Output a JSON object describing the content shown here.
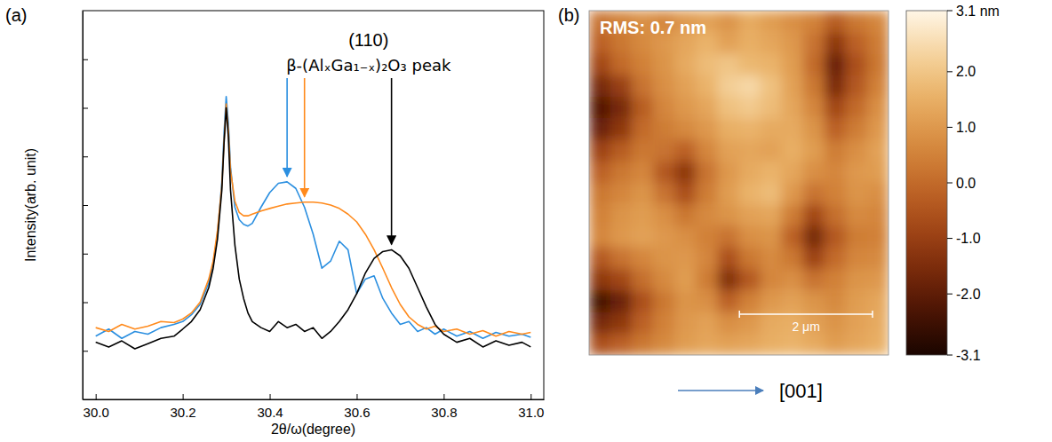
{
  "chart_data": [
    {
      "type": "line",
      "panel_label": "(a)",
      "x_label": "2θ/ω(degree)",
      "y_label": "Intensity(arb. unit)",
      "annotations": [
        "(110)",
        "β-(AlₓGa₁₋ₓ)₂O₃ peak"
      ],
      "x": [
        30.0,
        30.03,
        30.06,
        30.09,
        30.12,
        30.15,
        30.18,
        30.2,
        30.22,
        30.24,
        30.26,
        30.27,
        30.28,
        30.29,
        30.295,
        30.3,
        30.305,
        30.31,
        30.32,
        30.33,
        30.34,
        30.35,
        30.36,
        30.38,
        30.4,
        30.42,
        30.44,
        30.46,
        30.48,
        30.5,
        30.52,
        30.54,
        30.56,
        30.58,
        30.6,
        30.62,
        30.64,
        30.66,
        30.68,
        30.7,
        30.72,
        30.74,
        30.76,
        30.78,
        30.8,
        30.83,
        30.86,
        30.89,
        30.92,
        30.95,
        30.98,
        31.0
      ],
      "series": [
        {
          "color": "#2b8fe0",
          "values": [
            20,
            28,
            18,
            25,
            22,
            30,
            35,
            40,
            55,
            90,
            250,
            600,
            2500,
            30000,
            300000,
            1700000,
            500000,
            60000,
            9000,
            5000,
            4000,
            3700,
            4200,
            9000,
            18000,
            28000,
            30000,
            22000,
            9000,
            2500,
            500,
            700,
            1800,
            1200,
            150,
            300,
            350,
            120,
            60,
            35,
            40,
            25,
            30,
            22,
            28,
            20,
            25,
            18,
            24,
            20,
            22,
            19
          ]
        },
        {
          "color": "#ff8a1c",
          "values": [
            30,
            25,
            35,
            28,
            32,
            40,
            38,
            45,
            60,
            100,
            300,
            700,
            3000,
            25000,
            200000,
            1200000,
            350000,
            50000,
            12000,
            7000,
            6000,
            6000,
            6500,
            7500,
            8500,
            9500,
            10500,
            11000,
            11500,
            11500,
            11000,
            10000,
            8500,
            6500,
            4500,
            2500,
            1200,
            500,
            200,
            90,
            50,
            35,
            28,
            32,
            25,
            28,
            22,
            26,
            20,
            25,
            22,
            24
          ]
        },
        {
          "color": "#000000",
          "values": [
            15,
            12,
            16,
            11,
            14,
            18,
            20,
            28,
            40,
            70,
            200,
            500,
            2000,
            20000,
            180000,
            1000000,
            250000,
            20000,
            1500,
            300,
            120,
            60,
            40,
            30,
            25,
            40,
            30,
            35,
            25,
            30,
            18,
            25,
            40,
            70,
            150,
            400,
            800,
            1100,
            1200,
            900,
            500,
            200,
            80,
            35,
            22,
            15,
            18,
            12,
            16,
            13,
            15,
            12
          ]
        }
      ],
      "xlim": [
        29.97,
        31.03
      ],
      "xticks": [
        {
          "value": 30.0,
          "label": "30.0"
        },
        {
          "value": 30.2,
          "label": "30.2"
        },
        {
          "value": 30.4,
          "label": "30.4"
        },
        {
          "value": 30.6,
          "label": "30.6"
        },
        {
          "value": 30.8,
          "label": "30.8"
        },
        {
          "value": 31.0,
          "label": "31.0"
        }
      ],
      "ylim": [
        1,
        100000000
      ],
      "yticks": [
        10,
        100,
        1000,
        10000,
        100000,
        1000000,
        10000000
      ],
      "log": "y",
      "grid": false,
      "tick_labels": "x"
    },
    {
      "type": "heatmap",
      "panel_label": "(b)",
      "annotations": [
        "RMS: 0.7 nm"
      ],
      "xlim": [
        0,
        4.5
      ],
      "ylim": [
        0,
        5.2
      ],
      "tick_labels": false,
      "cells": [
        [
          0.2,
          0.5,
          0.8,
          0.6,
          1.0,
          1.2,
          0.9,
          1.4,
          1.1,
          0.8,
          0.5,
          -0.3,
          0.3,
          0.6
        ],
        [
          -0.2,
          0.3,
          0.7,
          1.0,
          1.3,
          1.6,
          1.2,
          1.5,
          1.3,
          1.0,
          0.2,
          -1.2,
          -0.2,
          0.4
        ],
        [
          -0.8,
          0.0,
          0.5,
          0.9,
          1.4,
          1.8,
          2.0,
          1.7,
          1.6,
          1.1,
          0.0,
          -1.8,
          -0.6,
          0.3
        ],
        [
          -1.6,
          -1.0,
          0.2,
          0.8,
          1.2,
          1.6,
          2.2,
          2.4,
          1.9,
          1.2,
          0.3,
          -1.5,
          -0.4,
          0.5
        ],
        [
          -2.2,
          -1.6,
          -0.3,
          0.6,
          1.0,
          1.3,
          1.9,
          2.1,
          1.8,
          1.3,
          0.6,
          -0.8,
          0.0,
          0.8
        ],
        [
          -1.8,
          -1.2,
          0.0,
          0.4,
          0.7,
          1.0,
          1.5,
          1.6,
          1.4,
          1.4,
          0.9,
          -0.2,
          0.4,
          1.0
        ],
        [
          -0.9,
          -0.3,
          0.3,
          0.2,
          -0.2,
          0.6,
          1.2,
          1.3,
          1.2,
          1.5,
          1.1,
          0.4,
          0.8,
          1.2
        ],
        [
          -0.2,
          0.3,
          0.6,
          -0.4,
          -1.2,
          0.2,
          1.0,
          1.4,
          1.6,
          1.3,
          0.8,
          0.6,
          1.0,
          1.1
        ],
        [
          0.3,
          0.6,
          0.9,
          0.2,
          -0.6,
          0.4,
          1.1,
          1.6,
          1.8,
          1.0,
          0.2,
          0.5,
          0.9,
          0.8
        ],
        [
          0.5,
          0.9,
          1.1,
          0.8,
          0.3,
          0.7,
          0.9,
          1.2,
          1.3,
          0.4,
          -0.8,
          0.1,
          0.7,
          0.6
        ],
        [
          0.6,
          1.0,
          1.2,
          1.0,
          0.8,
          0.5,
          0.2,
          0.8,
          0.9,
          -0.2,
          -1.6,
          -0.4,
          0.4,
          0.5
        ],
        [
          -0.4,
          0.2,
          0.6,
          0.9,
          1.0,
          0.6,
          -0.6,
          0.3,
          0.7,
          0.3,
          -0.9,
          0.0,
          0.6,
          0.7
        ],
        [
          -1.2,
          -0.8,
          0.1,
          0.7,
          1.1,
          0.4,
          -1.4,
          -0.4,
          0.6,
          0.8,
          0.2,
          0.5,
          0.9,
          1.0
        ],
        [
          -2.4,
          -1.8,
          -0.6,
          0.3,
          0.9,
          0.8,
          -0.2,
          0.5,
          1.0,
          1.2,
          0.9,
          0.7,
          1.1,
          1.3
        ],
        [
          -1.6,
          -1.2,
          -0.2,
          0.5,
          1.0,
          1.2,
          0.8,
          1.0,
          1.4,
          1.5,
          1.2,
          0.9,
          1.2,
          1.4
        ],
        [
          -0.6,
          -0.2,
          0.3,
          0.7,
          1.1,
          1.3,
          1.2,
          1.3,
          1.5,
          1.6,
          1.4,
          1.1,
          1.3,
          1.5
        ]
      ],
      "colorbar_lim": [
        -3.1,
        3.1
      ],
      "colorbar_ticks": [
        {
          "value": 3.1,
          "label": "3.1 nm"
        },
        {
          "value": 2,
          "label": "2.0"
        },
        {
          "value": 1,
          "label": "1.0"
        },
        {
          "value": 0,
          "label": "0.0"
        },
        {
          "value": -1,
          "label": "-1.0"
        },
        {
          "value": -2,
          "label": "-2.0"
        },
        {
          "value": -3.1,
          "label": "-3.1"
        }
      ],
      "scale_bar": {
        "value": 2,
        "label": "2 μm"
      },
      "direction_label": "[001]"
    }
  ]
}
